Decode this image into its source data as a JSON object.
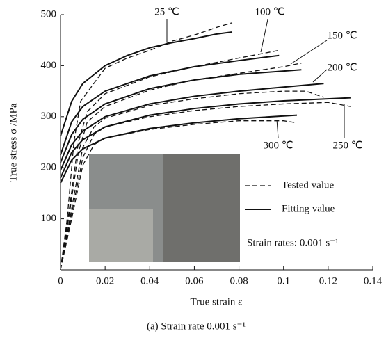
{
  "chart_data": {
    "type": "line",
    "xlabel": "True strain ε",
    "ylabel": "True stress σ /MPa",
    "caption": "(a) Strain rate 0.001 s⁻¹",
    "note": "Strain rates: 0.001 s⁻¹",
    "xlim": [
      0,
      0.14
    ],
    "xticks": [
      0,
      0.02,
      0.04,
      0.06,
      0.08,
      0.1,
      0.12,
      0.14
    ],
    "ylim": [
      0,
      500
    ],
    "yticks": [
      100,
      200,
      300,
      400,
      500
    ],
    "legend": {
      "position": "right",
      "entries": [
        {
          "name": "Tested value",
          "dash": "dashed"
        },
        {
          "name": "Fitting value",
          "dash": "solid"
        }
      ]
    },
    "color": "#111111",
    "series": [
      {
        "label": "25 ℃",
        "tested": {
          "x": [
            0,
            0.003,
            0.006,
            0.009,
            0.02,
            0.03,
            0.04,
            0.05,
            0.06,
            0.07,
            0.077
          ],
          "values": [
            0,
            100,
            250,
            330,
            395,
            415,
            430,
            448,
            460,
            475,
            484
          ]
        },
        "fitting": {
          "x": [
            0,
            0.005,
            0.01,
            0.02,
            0.03,
            0.04,
            0.05,
            0.06,
            0.07,
            0.077
          ],
          "values": [
            262,
            330,
            365,
            400,
            420,
            435,
            445,
            453,
            462,
            466
          ]
        }
      },
      {
        "label": "100 ℃",
        "tested": {
          "x": [
            0,
            0.004,
            0.008,
            0.012,
            0.02,
            0.04,
            0.06,
            0.08,
            0.098
          ],
          "values": [
            0,
            120,
            250,
            310,
            345,
            378,
            398,
            415,
            430
          ]
        },
        "fitting": {
          "x": [
            0,
            0.005,
            0.01,
            0.02,
            0.04,
            0.06,
            0.08,
            0.098
          ],
          "values": [
            225,
            290,
            320,
            350,
            380,
            398,
            410,
            420
          ]
        }
      },
      {
        "label": "150 ℃",
        "tested": {
          "x": [
            0,
            0.004,
            0.008,
            0.012,
            0.02,
            0.04,
            0.06,
            0.08,
            0.1,
            0.108
          ],
          "values": [
            0,
            110,
            230,
            290,
            320,
            352,
            372,
            385,
            398,
            405
          ]
        },
        "fitting": {
          "x": [
            0,
            0.005,
            0.01,
            0.02,
            0.04,
            0.06,
            0.08,
            0.108
          ],
          "values": [
            210,
            265,
            295,
            325,
            355,
            372,
            383,
            392
          ]
        }
      },
      {
        "label": "200 ℃",
        "tested": {
          "x": [
            0,
            0.005,
            0.01,
            0.015,
            0.02,
            0.04,
            0.06,
            0.08,
            0.1,
            0.11,
            0.118
          ],
          "values": [
            0,
            120,
            240,
            280,
            297,
            322,
            335,
            345,
            350,
            350,
            338
          ]
        },
        "fitting": {
          "x": [
            0,
            0.005,
            0.01,
            0.02,
            0.04,
            0.06,
            0.08,
            0.1,
            0.118
          ],
          "values": [
            195,
            245,
            272,
            300,
            325,
            340,
            350,
            358,
            365
          ]
        }
      },
      {
        "label": "250 ℃",
        "tested": {
          "x": [
            0,
            0.005,
            0.01,
            0.015,
            0.02,
            0.04,
            0.06,
            0.08,
            0.1,
            0.12,
            0.13
          ],
          "values": [
            0,
            110,
            220,
            265,
            280,
            300,
            312,
            320,
            325,
            328,
            320
          ]
        },
        "fitting": {
          "x": [
            0,
            0.005,
            0.01,
            0.02,
            0.04,
            0.06,
            0.08,
            0.1,
            0.13
          ],
          "values": [
            180,
            230,
            255,
            280,
            303,
            316,
            325,
            331,
            337
          ]
        }
      },
      {
        "label": "300 ℃",
        "tested": {
          "x": [
            0,
            0.005,
            0.01,
            0.015,
            0.02,
            0.04,
            0.06,
            0.08,
            0.1,
            0.106
          ],
          "values": [
            0,
            100,
            205,
            245,
            258,
            275,
            285,
            292,
            292,
            288
          ]
        },
        "fitting": {
          "x": [
            0,
            0.005,
            0.01,
            0.02,
            0.04,
            0.06,
            0.08,
            0.106
          ],
          "values": [
            170,
            215,
            237,
            258,
            277,
            288,
            296,
            303
          ]
        }
      }
    ]
  }
}
